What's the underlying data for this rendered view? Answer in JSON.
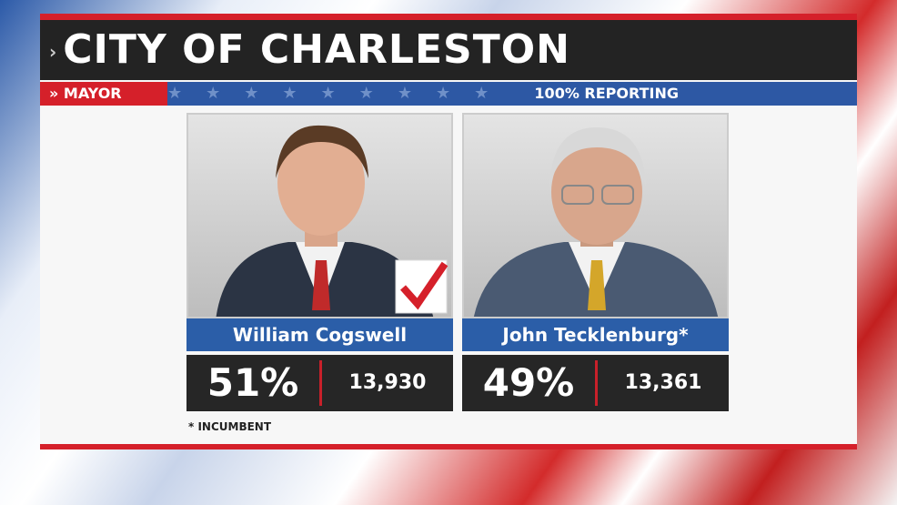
{
  "header": {
    "title": "CITY OF CHARLESTON"
  },
  "race": {
    "office": "MAYOR",
    "reporting": "100% REPORTING"
  },
  "candidates": [
    {
      "name": "William Cogswell",
      "percent": "51%",
      "votes": "13,930"
    },
    {
      "name": "John Tecklenburg*",
      "percent": "49%",
      "votes": "13,361"
    }
  ],
  "footnote": "* INCUMBENT"
}
